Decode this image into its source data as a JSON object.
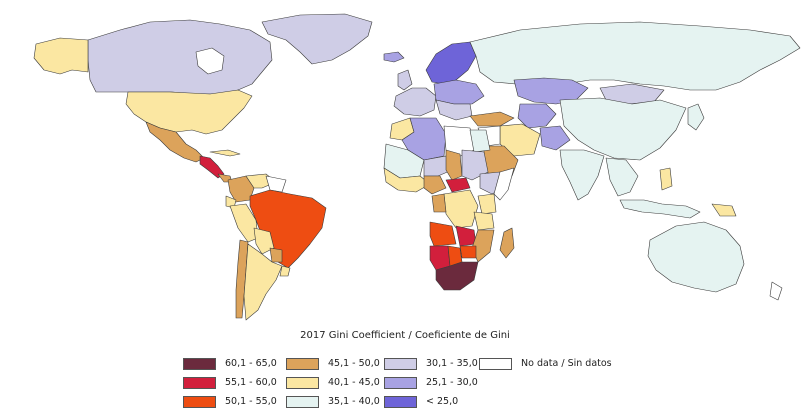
{
  "legend": {
    "title": "2017 Gini Coefficient / Coeficiente de Gini",
    "items": [
      {
        "label": "60,1 - 65,0",
        "color": "#6b2a3d"
      },
      {
        "label": "55,1 - 60,0",
        "color": "#d21f3c"
      },
      {
        "label": "50,1 - 55,0",
        "color": "#ee4d12"
      },
      {
        "label": "45,1 - 50,0",
        "color": "#dca35b"
      },
      {
        "label": "40,1 - 45,0",
        "color": "#fbe7a2"
      },
      {
        "label": "35,1 - 40,0",
        "color": "#e5f3f1"
      },
      {
        "label": "30,1 - 35,0",
        "color": "#cfcde6"
      },
      {
        "label": "25,1 - 30,0",
        "color": "#a8a2e3"
      },
      {
        "label": "< 25,0",
        "color": "#6e64d8"
      },
      {
        "label": "No data / Sin datos",
        "color": "#ffffff"
      }
    ]
  }
}
